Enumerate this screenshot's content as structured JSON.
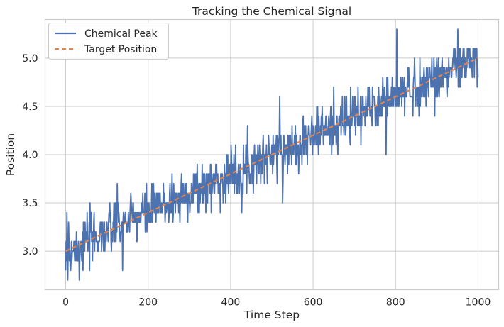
{
  "chart_data": {
    "type": "line",
    "title": "Tracking the Chemical Signal",
    "xlabel": "Time Step",
    "ylabel": "Position",
    "xlim": [
      -50,
      1050
    ],
    "ylim": [
      2.6,
      5.4
    ],
    "xticks": [
      0,
      200,
      400,
      600,
      800,
      1000
    ],
    "yticks": [
      3.0,
      3.5,
      4.0,
      4.5,
      5.0
    ],
    "xtick_labels": [
      "0",
      "200",
      "400",
      "600",
      "800",
      "1000"
    ],
    "ytick_labels": [
      "3.0",
      "3.5",
      "4.0",
      "4.5",
      "5.0"
    ],
    "grid": true,
    "legend_position": "top-left",
    "series": [
      {
        "name": "Chemical Peak",
        "color": "#4c72b0",
        "style": "solid",
        "generator": {
          "x_start": 0,
          "x_end": 1000,
          "step": 1,
          "trend_start": 3.0,
          "trend_end": 5.0,
          "quantum": 0.1,
          "noise_std": 0.13,
          "seed": 7,
          "y_min": 2.7,
          "y_max": 5.3
        },
        "spikes": [
          [
            0,
            2.8
          ],
          [
            3,
            3.4
          ],
          [
            5,
            2.7
          ],
          [
            7,
            3.3
          ],
          [
            12,
            2.8
          ],
          [
            33,
            2.7
          ],
          [
            138,
            2.8
          ],
          [
            519,
            4.6
          ],
          [
            803,
            5.3
          ],
          [
            951,
            5.3
          ],
          [
            995,
            5.1
          ]
        ]
      },
      {
        "name": "Target Position",
        "color": "#dd8452",
        "style": "dashed",
        "x": [
          0,
          1000
        ],
        "values": [
          3.0,
          5.0
        ]
      }
    ]
  }
}
